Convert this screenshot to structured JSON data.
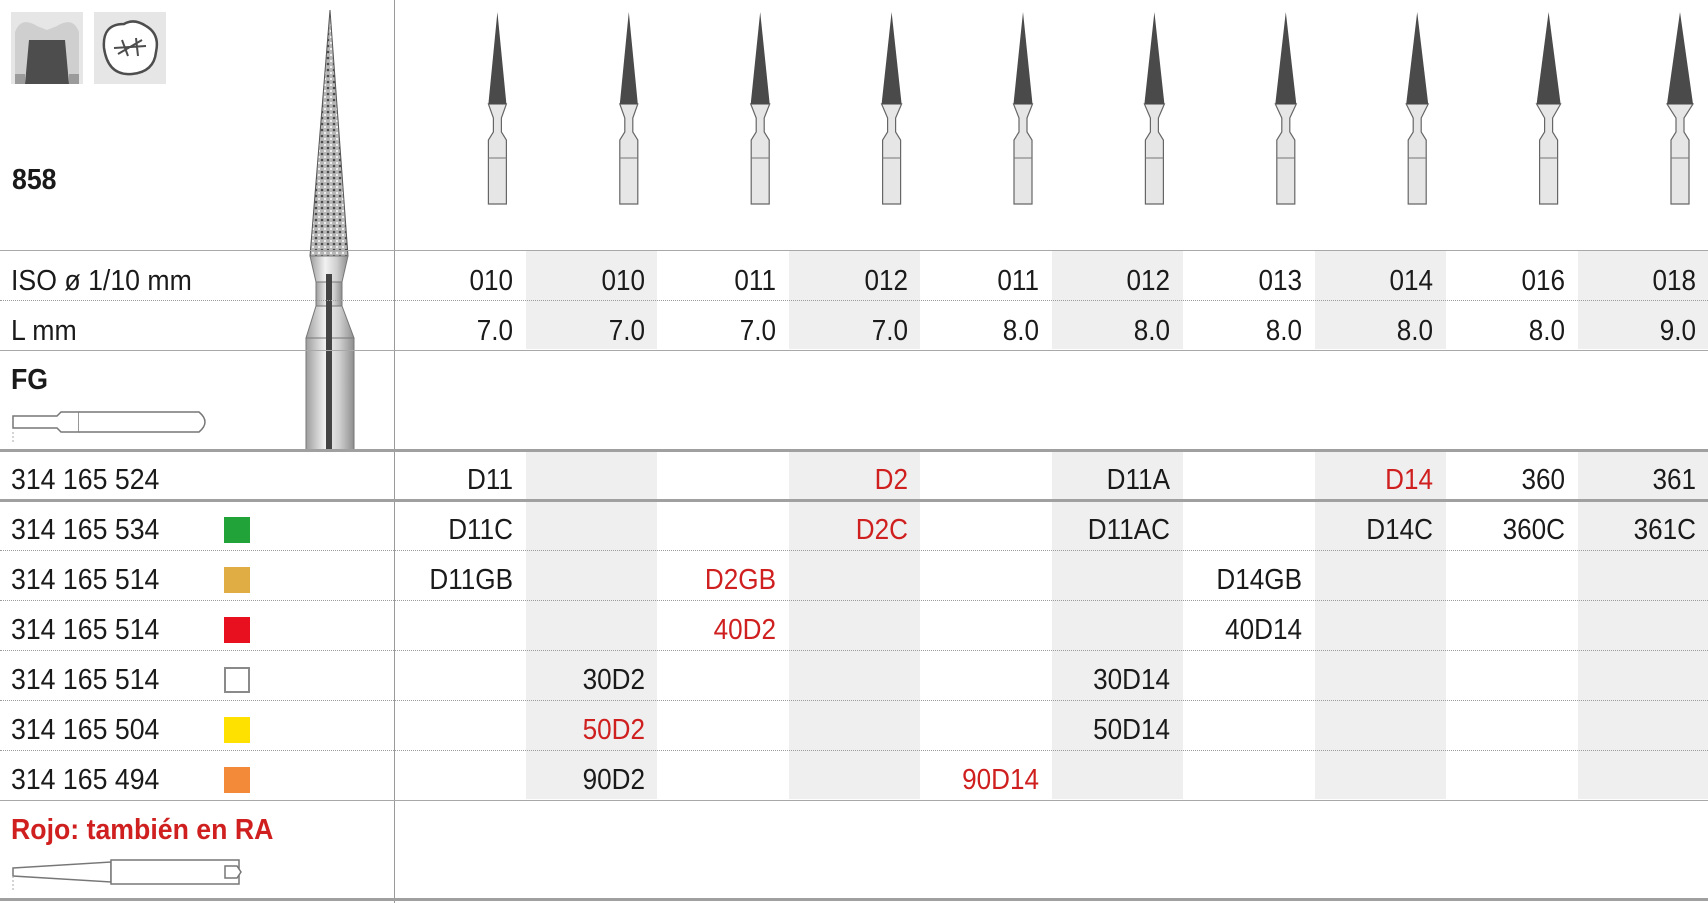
{
  "product_code": "858",
  "iso_label": "ISO ø 1/10 mm",
  "length_label": "L mm",
  "shank_type": "FG",
  "footer_note": "Rojo: también en RA",
  "icons": [
    "crown-preparation-icon",
    "occlusal-view-icon"
  ],
  "iso": [
    "010",
    "010",
    "011",
    "012",
    "011",
    "012",
    "013",
    "014",
    "016",
    "018"
  ],
  "length": [
    "7.0",
    "7.0",
    "7.0",
    "7.0",
    "8.0",
    "8.0",
    "8.0",
    "8.0",
    "8.0",
    "9.0"
  ],
  "colors": {
    "red_text": "#cf1f1f",
    "green": "#22a33a",
    "gold": "#e0ad45",
    "red": "#e8101f",
    "white": "#ffffff",
    "yellow": "#ffe100",
    "orange": "#f28a3a",
    "shade": "#efefef"
  },
  "rows": [
    {
      "ref": "314 165 524",
      "swatch": "none",
      "cells": [
        "D11",
        "",
        "",
        "D2",
        "",
        "D11A",
        "",
        "D14",
        "360",
        "361"
      ],
      "red": [
        3,
        7
      ]
    },
    {
      "ref": "314 165 534",
      "swatch": "green",
      "cells": [
        "D11C",
        "",
        "",
        "D2C",
        "",
        "D11AC",
        "",
        "D14C",
        "360C",
        "361C"
      ],
      "red": [
        3
      ]
    },
    {
      "ref": "314 165 514",
      "swatch": "gold",
      "cells": [
        "D11GB",
        "",
        "D2GB",
        "",
        "",
        "",
        "D14GB",
        "",
        "",
        ""
      ],
      "red": [
        2
      ]
    },
    {
      "ref": "314 165 514",
      "swatch": "red",
      "cells": [
        "",
        "",
        "40D2",
        "",
        "",
        "",
        "40D14",
        "",
        "",
        ""
      ],
      "red": [
        2
      ]
    },
    {
      "ref": "314 165 514",
      "swatch": "white",
      "cells": [
        "",
        "30D2",
        "",
        "",
        "",
        "30D14",
        "",
        "",
        "",
        ""
      ],
      "red": []
    },
    {
      "ref": "314 165 504",
      "swatch": "yellow",
      "cells": [
        "",
        "50D2",
        "",
        "",
        "",
        "50D14",
        "",
        "",
        "",
        ""
      ],
      "red": [
        1
      ]
    },
    {
      "ref": "314 165 494",
      "swatch": "orange",
      "cells": [
        "",
        "90D2",
        "",
        "",
        "90D14",
        "",
        "",
        "",
        "",
        ""
      ],
      "red": [
        4
      ]
    }
  ]
}
